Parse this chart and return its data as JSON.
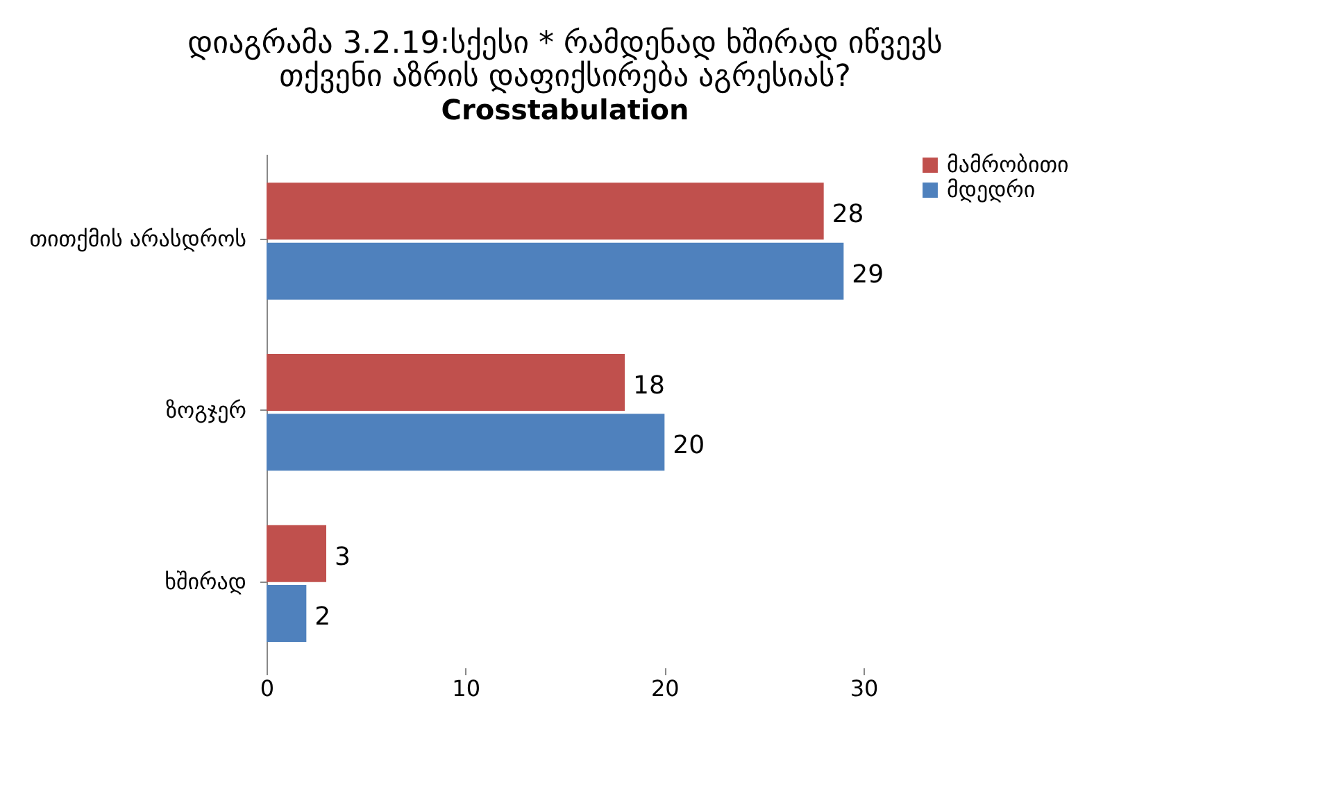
{
  "chart_data": {
    "type": "bar",
    "orientation": "horizontal",
    "title": "დიაგრამა 3.2.19:სქესი * რამდენად ხშირად იწვევს\nთქვენი აზრის დაფიქსირება აგრესიას?",
    "subtitle": "Crosstabulation",
    "categories": [
      "თითქმის არასდროს",
      "ზოგჯერ",
      "ხშირად"
    ],
    "series": [
      {
        "name": "მამრობითი",
        "color": "#c0504d",
        "values": [
          28,
          18,
          3
        ]
      },
      {
        "name": "მდედრი",
        "color": "#4f81bd",
        "values": [
          29,
          20,
          2
        ]
      }
    ],
    "xlim": [
      0,
      30
    ],
    "xticks": [
      0,
      10,
      20,
      30
    ],
    "data_labels": true,
    "legend": "right"
  }
}
